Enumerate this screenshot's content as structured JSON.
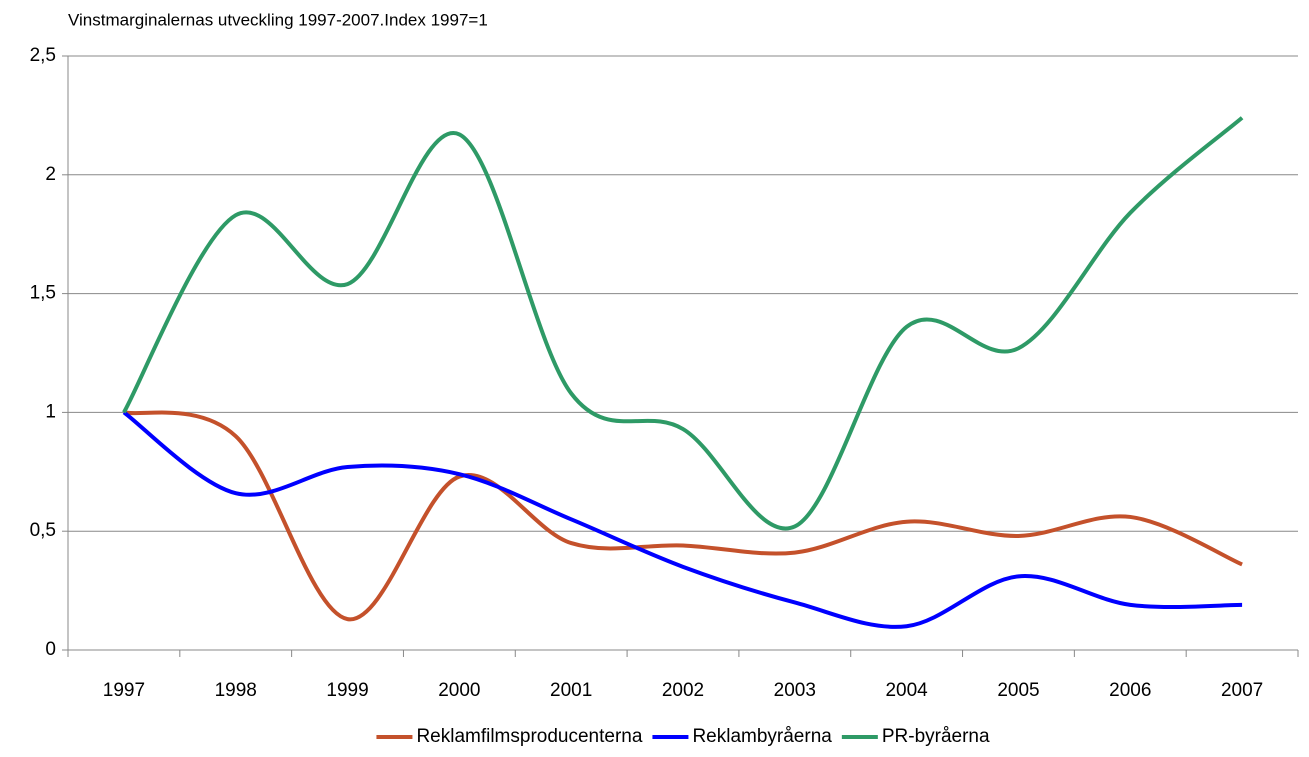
{
  "chart_data": {
    "type": "line",
    "title": "Vinstmarginalernas utveckling 1997-2007.Index 1997=1",
    "categories": [
      "1997",
      "1998",
      "1999",
      "2000",
      "2001",
      "2002",
      "2003",
      "2004",
      "2005",
      "2006",
      "2007"
    ],
    "series": [
      {
        "name": "Reklamfilmsproducenterna",
        "color": "#c4512b",
        "values": [
          1,
          0.9,
          0.13,
          0.73,
          0.45,
          0.44,
          0.41,
          0.54,
          0.48,
          0.56,
          0.36
        ]
      },
      {
        "name": "Reklambyråerna",
        "color": "#0000ff",
        "values": [
          1,
          0.66,
          0.77,
          0.74,
          0.55,
          0.35,
          0.2,
          0.1,
          0.31,
          0.19,
          0.19
        ]
      },
      {
        "name": "PR-byråerna",
        "color": "#2e9a66",
        "values": [
          1,
          1.83,
          1.54,
          2.17,
          1.08,
          0.93,
          0.52,
          1.36,
          1.27,
          1.84,
          2.24
        ]
      }
    ],
    "ylim": [
      0,
      2.5
    ],
    "yticks": [
      0,
      {
        "value": 0.5,
        "label": "0,5"
      },
      1,
      {
        "value": 1.5,
        "label": "1,5"
      },
      2,
      {
        "value": 2.5,
        "label": "2,5"
      }
    ],
    "grid": true,
    "legend": "bottom"
  }
}
